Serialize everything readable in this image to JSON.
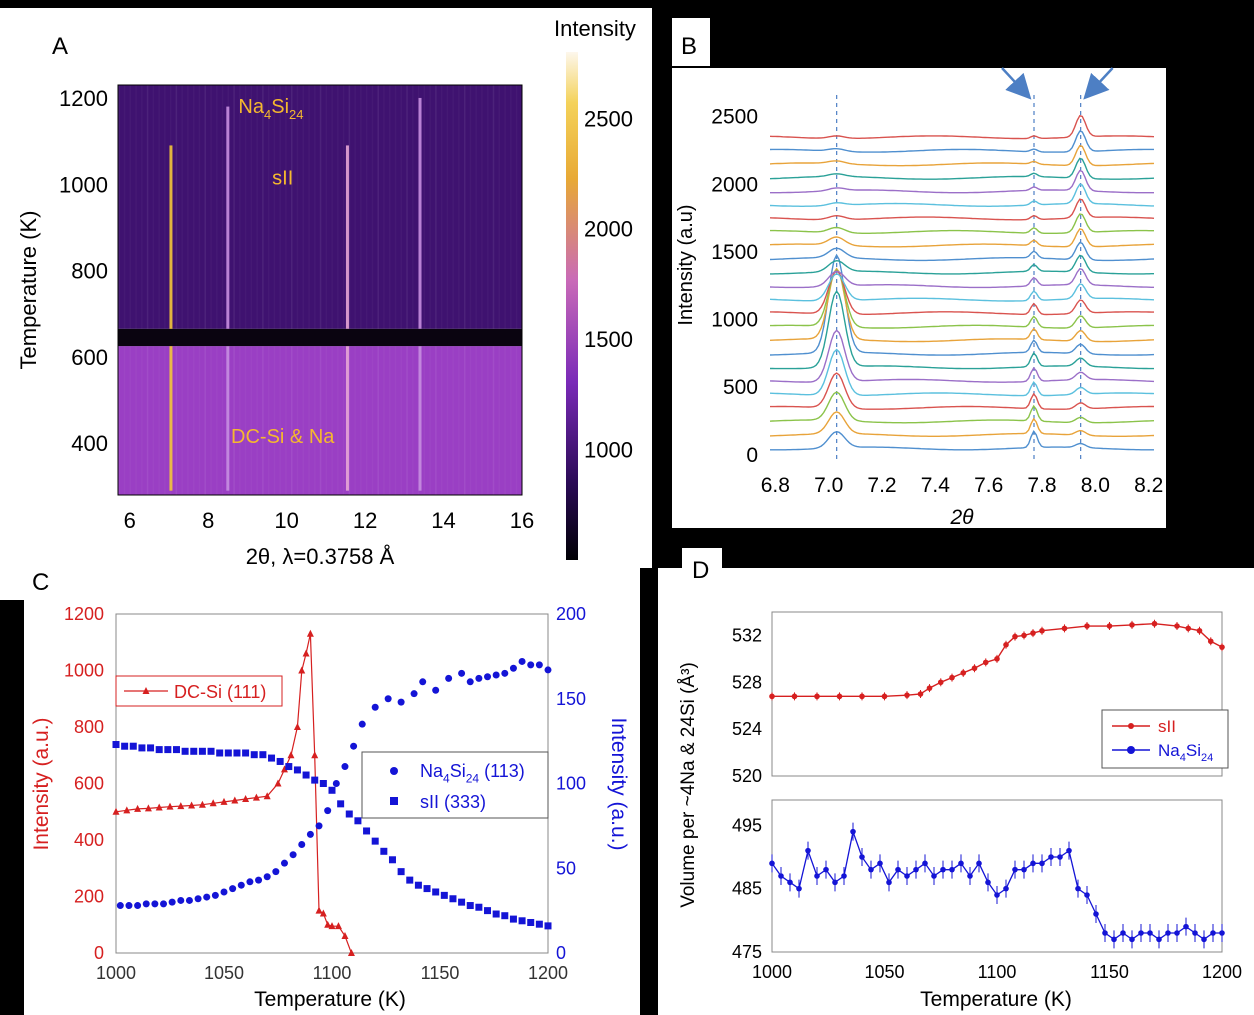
{
  "panels": {
    "a": "A",
    "b": "B",
    "c": "C",
    "d": "D"
  },
  "chart_data": [
    {
      "id": "A",
      "type": "heatmap",
      "xlabel": "2θ,   λ=0.3758 Å",
      "ylabel": "Temperature (K)",
      "xlim": [
        5.7,
        16.0
      ],
      "ylim": [
        280,
        1230
      ],
      "xticks": [
        "6",
        "8",
        "10",
        "12",
        "14",
        "16"
      ],
      "xtick_values": [
        6,
        8,
        10,
        12,
        14,
        16
      ],
      "yticks": [
        "400",
        "600",
        "800",
        "1000",
        "1200"
      ],
      "ytick_values": [
        400,
        600,
        800,
        1000,
        1200
      ],
      "colorbar": {
        "title": "Intensity",
        "ticks": [
          "1000",
          "1500",
          "2000",
          "2500"
        ],
        "tick_values": [
          1000,
          1500,
          2000,
          2500
        ],
        "range": [
          500,
          2800
        ]
      },
      "regions": [
        {
          "label": "Na4Si24",
          "label_parts": [
            "Na",
            "4",
            "Si",
            "24"
          ],
          "x": 9.6,
          "y": 1165
        },
        {
          "label": "sII",
          "x": 9.9,
          "y": 1000
        },
        {
          "label": "DC-Si & Na",
          "x": 9.9,
          "y": 400
        }
      ],
      "bright_lines": [
        {
          "x": 7.05,
          "y_from": 290,
          "y_to": 1090,
          "intensity": 2300
        },
        {
          "x": 11.55,
          "y_from": 290,
          "y_to": 1090,
          "intensity": 1600
        },
        {
          "x": 8.5,
          "y_from": 290,
          "y_to": 1180,
          "intensity": 1300
        },
        {
          "x": 13.4,
          "y_from": 290,
          "y_to": 1200,
          "intensity": 1200
        }
      ],
      "gap_band": [
        625,
        665
      ]
    },
    {
      "id": "B",
      "type": "line",
      "xlabel": "2θ",
      "ylabel": "Intensity (a.u)",
      "xlim": [
        6.75,
        8.25
      ],
      "ylim": [
        -60,
        2800
      ],
      "xticks": [
        "6.8",
        "7.0",
        "7.2",
        "7.4",
        "7.6",
        "7.8",
        "8.0",
        "8.2"
      ],
      "xtick_values": [
        6.8,
        7.0,
        7.2,
        7.4,
        7.6,
        7.8,
        8.0,
        8.2
      ],
      "yticks": [
        "0",
        "500",
        "1000",
        "1500",
        "2000",
        "2500"
      ],
      "ytick_values": [
        0,
        500,
        1000,
        1500,
        2000,
        2500
      ],
      "dashed_lines": [
        7.03,
        7.77,
        7.945
      ],
      "arrows_at": [
        7.77,
        7.945
      ],
      "series_offsets": [
        0,
        100,
        200,
        300,
        400,
        500,
        600,
        700,
        800,
        900,
        1000,
        1100,
        1200,
        1300,
        1400,
        1500,
        1600,
        1700,
        1800,
        1900,
        2000,
        2100,
        2200,
        2300
      ],
      "peak_7_03_heights": [
        120,
        160,
        210,
        260,
        340,
        380,
        560,
        720,
        520,
        420,
        320,
        200,
        110,
        80,
        70,
        60,
        40,
        30,
        20,
        20,
        20,
        20,
        20,
        20
      ],
      "peak_7_945_heights": [
        30,
        35,
        40,
        45,
        50,
        55,
        60,
        70,
        80,
        90,
        100,
        110,
        120,
        125,
        130,
        135,
        140,
        140,
        145,
        150,
        150,
        150,
        155,
        160
      ],
      "peak_7_77_heights": [
        120,
        110,
        110,
        110,
        100,
        100,
        100,
        90,
        80,
        80,
        80,
        70,
        60,
        50,
        50,
        40,
        40,
        30,
        30,
        25,
        25,
        20,
        20,
        20
      ],
      "colors": [
        "#4f8fcf",
        "#e8a33a",
        "#8bc34a",
        "#d9534f",
        "#5bc0de",
        "#9b6fc8",
        "#2aa198",
        "#4f8fcf",
        "#e8a33a",
        "#8bc34a",
        "#d9534f",
        "#5bc0de",
        "#9b6fc8",
        "#2aa198",
        "#4f8fcf",
        "#e8a33a",
        "#8bc34a",
        "#d9534f",
        "#5bc0de",
        "#9b6fc8",
        "#2aa198",
        "#e8a33a",
        "#4f8fcf",
        "#d9534f"
      ]
    },
    {
      "id": "C",
      "type": "scatter",
      "xlabel": "Temperature (K)",
      "ylabel": "Intensity (a.u.)",
      "ylabel_right": "Intensity (a.u.)",
      "xlim": [
        1000,
        1200
      ],
      "ylim": [
        0,
        1200
      ],
      "ylim_right": [
        0,
        200
      ],
      "xticks": [
        "1000",
        "1050",
        "1100",
        "1150",
        "1200"
      ],
      "xtick_values": [
        1000,
        1050,
        1100,
        1150,
        1200
      ],
      "yticks": [
        "0",
        "200",
        "400",
        "600",
        "800",
        "1000",
        "1200"
      ],
      "ytick_values": [
        0,
        200,
        400,
        600,
        800,
        1000,
        1200
      ],
      "yticks_right": [
        "0",
        "50",
        "100",
        "150",
        "200"
      ],
      "ytick_values_right": [
        0,
        50,
        100,
        150,
        200
      ],
      "legend_left": {
        "label": "DC-Si (111)"
      },
      "legend_right": [
        {
          "label": "Na4Si24 (113)",
          "label_parts": [
            "Na",
            "4",
            "Si",
            "24",
            " (113)"
          ]
        },
        {
          "label": "sII (333)"
        }
      ],
      "series": [
        {
          "name": "DC-Si (111)",
          "axis": "left",
          "color": "#d62020",
          "marker": "triangle",
          "x": [
            1000,
            1005,
            1010,
            1015,
            1020,
            1025,
            1030,
            1035,
            1040,
            1045,
            1050,
            1055,
            1060,
            1065,
            1070,
            1075,
            1078,
            1081,
            1084,
            1086,
            1088,
            1090,
            1092,
            1094,
            1096,
            1098,
            1100,
            1103,
            1106,
            1109
          ],
          "y": [
            500,
            505,
            510,
            512,
            515,
            518,
            520,
            522,
            525,
            530,
            535,
            540,
            545,
            550,
            555,
            600,
            650,
            700,
            800,
            1000,
            1060,
            1130,
            700,
            150,
            140,
            100,
            95,
            95,
            60,
            0
          ]
        },
        {
          "name": "Na4Si24 (113)",
          "axis": "right",
          "color": "#1414d6",
          "marker": "circle",
          "x": [
            1002,
            1006,
            1010,
            1014,
            1018,
            1022,
            1026,
            1030,
            1034,
            1038,
            1042,
            1046,
            1050,
            1054,
            1058,
            1062,
            1066,
            1070,
            1074,
            1078,
            1082,
            1086,
            1090,
            1094,
            1098,
            1102,
            1106,
            1110,
            1114,
            1120,
            1126,
            1132,
            1138,
            1142,
            1148,
            1154,
            1160,
            1164,
            1168,
            1172,
            1176,
            1180,
            1184,
            1188,
            1192,
            1196,
            1200
          ],
          "y": [
            28,
            28,
            28,
            29,
            29,
            29,
            30,
            31,
            31,
            32,
            33,
            34,
            36,
            38,
            40,
            42,
            43,
            45,
            48,
            53,
            58,
            64,
            70,
            75,
            84,
            100,
            110,
            122,
            135,
            145,
            150,
            148,
            153,
            160,
            155,
            162,
            165,
            160,
            162,
            163,
            164,
            165,
            168,
            172,
            170,
            170,
            167
          ]
        },
        {
          "name": "sII (333)",
          "axis": "right",
          "color": "#1414d6",
          "marker": "square",
          "x": [
            1000,
            1004,
            1008,
            1012,
            1016,
            1020,
            1024,
            1028,
            1032,
            1036,
            1040,
            1044,
            1048,
            1052,
            1056,
            1060,
            1064,
            1068,
            1072,
            1076,
            1080,
            1084,
            1088,
            1092,
            1096,
            1100,
            1104,
            1108,
            1112,
            1116,
            1120,
            1124,
            1128,
            1132,
            1136,
            1140,
            1144,
            1148,
            1152,
            1156,
            1160,
            1164,
            1168,
            1172,
            1176,
            1180,
            1184,
            1188,
            1192,
            1196,
            1200
          ],
          "y": [
            123,
            122,
            122,
            121,
            121,
            120,
            120,
            120,
            119,
            119,
            119,
            119,
            118,
            118,
            118,
            118,
            117,
            117,
            115,
            113,
            110,
            108,
            105,
            102,
            100,
            96,
            88,
            82,
            78,
            72,
            66,
            60,
            55,
            48,
            43,
            40,
            38,
            36,
            34,
            32,
            30,
            28,
            27,
            25,
            23,
            22,
            20,
            19,
            18,
            17,
            16
          ]
        }
      ]
    },
    {
      "id": "D-top",
      "type": "line",
      "xlim": [
        1000,
        1200
      ],
      "ylim": [
        520,
        534
      ],
      "xticks": [
        "1000",
        "1050",
        "1100",
        "1150",
        "1200"
      ],
      "xtick_values": [
        1000,
        1050,
        1100,
        1150,
        1200
      ],
      "yticks": [
        "520",
        "524",
        "528",
        "532"
      ],
      "ytick_values": [
        520,
        524,
        528,
        532
      ],
      "legend": [
        {
          "label": "sII"
        },
        {
          "label": "Na4Si24",
          "label_parts": [
            "Na",
            "4",
            "Si",
            "24"
          ]
        }
      ],
      "series": [
        {
          "name": "sII",
          "color": "#d62020",
          "marker": "circle",
          "x": [
            1000,
            1010,
            1020,
            1030,
            1040,
            1050,
            1060,
            1066,
            1070,
            1075,
            1080,
            1085,
            1090,
            1095,
            1100,
            1104,
            1108,
            1112,
            1116,
            1120,
            1130,
            1140,
            1150,
            1160,
            1170,
            1180,
            1185,
            1190,
            1195,
            1200
          ],
          "y": [
            526.8,
            526.8,
            526.8,
            526.8,
            526.8,
            526.8,
            526.9,
            527.0,
            527.5,
            528.0,
            528.4,
            528.8,
            529.2,
            529.7,
            530.0,
            531.2,
            531.9,
            532.0,
            532.2,
            532.4,
            532.6,
            532.8,
            532.8,
            532.9,
            533.0,
            532.8,
            532.6,
            532.4,
            531.5,
            531.0
          ]
        }
      ]
    },
    {
      "id": "D-bottom",
      "type": "line",
      "xlabel": "Temperature (K)",
      "ylabel": "Volume per ~4Na & 24Si  (Å³)",
      "xlim": [
        1000,
        1200
      ],
      "ylim": [
        475,
        499
      ],
      "xticks": [
        "1000",
        "1050",
        "1100",
        "1150",
        "1200"
      ],
      "xtick_values": [
        1000,
        1050,
        1100,
        1150,
        1200
      ],
      "yticks": [
        "475",
        "485",
        "495"
      ],
      "ytick_values": [
        475,
        485,
        495
      ],
      "series": [
        {
          "name": "Na4Si24",
          "color": "#1414d6",
          "marker": "circle",
          "x": [
            1000,
            1004,
            1008,
            1012,
            1016,
            1020,
            1024,
            1028,
            1032,
            1036,
            1040,
            1044,
            1048,
            1052,
            1056,
            1060,
            1064,
            1068,
            1072,
            1076,
            1080,
            1084,
            1088,
            1092,
            1096,
            1100,
            1104,
            1108,
            1112,
            1116,
            1120,
            1124,
            1128,
            1132,
            1136,
            1140,
            1144,
            1148,
            1152,
            1156,
            1160,
            1164,
            1168,
            1172,
            1176,
            1180,
            1184,
            1188,
            1192,
            1196,
            1200
          ],
          "y": [
            489,
            487,
            486,
            485,
            491,
            487,
            488,
            486,
            487,
            494,
            490,
            488,
            489,
            486,
            488,
            487,
            488,
            489,
            487,
            488,
            488,
            489,
            487,
            489,
            486,
            484,
            485,
            488,
            488,
            489,
            489,
            490,
            490,
            491,
            485,
            484,
            481,
            478,
            477,
            478,
            477,
            478,
            478,
            477,
            478,
            478,
            479,
            478,
            477,
            478,
            478
          ]
        }
      ]
    }
  ]
}
